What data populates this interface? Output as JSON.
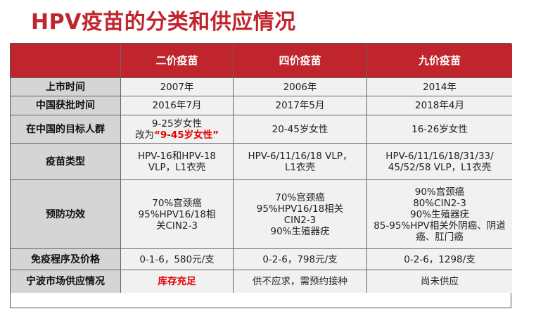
{
  "title": "HPV疫苗的分类和供应情况",
  "colors": {
    "accent": "#c0252e",
    "highlight": "#e00000",
    "label_bg": "#d5d5d5",
    "cell_bg": "#f1f1f1"
  },
  "table": {
    "headers": [
      "",
      "二价疫苗",
      "四价疫苗",
      "九价疫苗"
    ],
    "rows": [
      {
        "label": "上市时间",
        "cells": [
          [
            "2007年"
          ],
          [
            "2006年"
          ],
          [
            "2014年"
          ]
        ]
      },
      {
        "label": "中国获批时间",
        "cells": [
          [
            "2016年7月"
          ],
          [
            "2017年5月"
          ],
          [
            "2018年4月"
          ]
        ]
      },
      {
        "label": "在中国的目标人群",
        "cells": [
          [
            "9-25岁女性"
          ],
          [
            "20-45岁女性"
          ],
          [
            "16-26岁女性"
          ]
        ]
      },
      {
        "label": "疫苗类型",
        "cells": [
          [
            "HPV-16和HPV-18",
            "VLP，L1衣壳"
          ],
          [
            "HPV-6/11/16/18 VLP，",
            "L1衣壳"
          ],
          [
            "HPV-6/11/16/18/31/33/",
            "45/52/58 VLP，L1衣壳"
          ]
        ]
      },
      {
        "label": "预防功效",
        "cells": [
          [
            "70%宫颈癌",
            "95%HPV16/18相",
            "关CIN2-3"
          ],
          [
            "70%宫颈癌",
            "95%HPV16/18相关",
            "CIN2-3",
            "90%生殖器疣"
          ],
          [
            "90%宫颈癌",
            "80%CIN2-3",
            "90%生殖器疣",
            "85-95%HPV相关外阴癌、阴道",
            "癌、肛门癌"
          ]
        ]
      },
      {
        "label": "免疫程序及价格",
        "cells": [
          [
            "0-1-6，580元/支"
          ],
          [
            "0-2-6，798元/支"
          ],
          [
            "0-2-6，1298/支"
          ]
        ]
      },
      {
        "label": "宁波市场供应情况",
        "cells": [
          [
            "库存充足"
          ],
          [
            "供不应求，需预约接种"
          ],
          [
            "尚未供应"
          ]
        ]
      }
    ],
    "target_change": {
      "prefix": "改为",
      "open_quote": "“",
      "value": "9-45岁女性",
      "close_quote": "”"
    }
  }
}
